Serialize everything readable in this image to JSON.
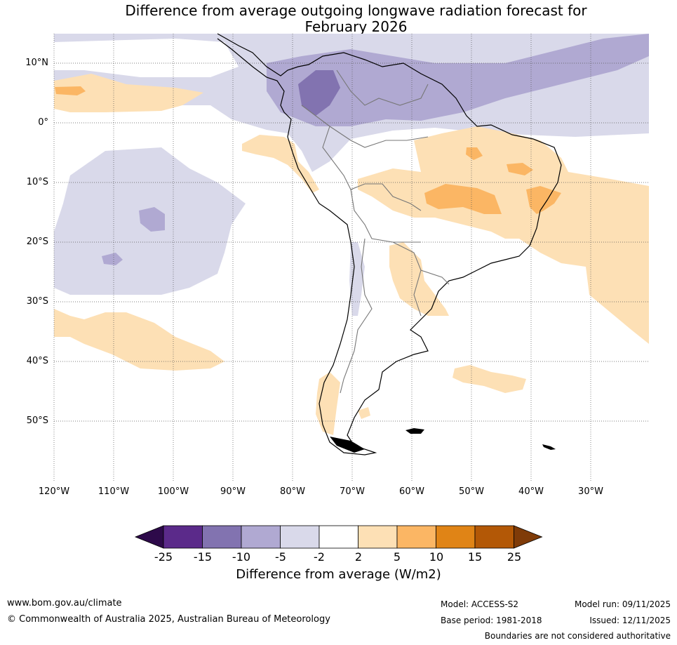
{
  "title": "Difference from average outgoing longwave radiation forecast for February 2026",
  "title_lines": [
    "Difference from average outgoing longwave radiation forecast for",
    "February 2026"
  ],
  "axes": {
    "lon_ticks": [
      "120°W",
      "110°W",
      "100°W",
      "90°W",
      "80°W",
      "70°W",
      "60°W",
      "50°W",
      "40°W",
      "30°W"
    ],
    "lat_ticks": [
      "10°N",
      "0°",
      "10°S",
      "20°S",
      "30°S",
      "40°S",
      "50°S"
    ]
  },
  "colorbar": {
    "labels": [
      "-25",
      "-15",
      "-10",
      "-5",
      "-2",
      "2",
      "5",
      "10",
      "15",
      "25"
    ],
    "colors": [
      "#2d0a4a",
      "#5b2a8a",
      "#8273b0",
      "#b0a9d2",
      "#d9d9ea",
      "#ffffff",
      "#fde0b5",
      "#fbb664",
      "#e08416",
      "#b35806",
      "#7f3b08"
    ],
    "title": "Difference from average (W/m2)"
  },
  "footer": {
    "website": "www.bom.gov.au/climate",
    "copyright": "© Commonwealth of Australia 2025, Australian Bureau of Meteorology",
    "model": "Model: ACCESS-S2",
    "base_period": "Base period: 1981-2018",
    "model_run": "Model run: 09/11/2025",
    "issued": "Issued: 12/11/2025",
    "disclaimer": "Boundaries are not considered authoritative"
  }
}
